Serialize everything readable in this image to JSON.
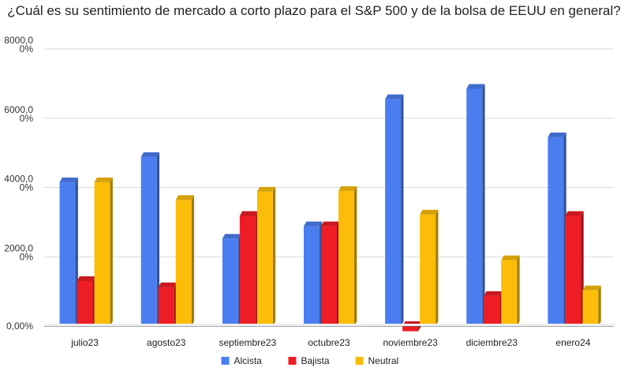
{
  "chart_data": {
    "type": "bar",
    "title": "¿Cuál es su sentimiento de mercado a corto plazo para el S&P 500 y de la bolsa de EEUU en general?",
    "categories": [
      "julio23",
      "agosto23",
      "septiembre23",
      "octubre23",
      "noviembre23",
      "diciembre23",
      "enero24"
    ],
    "series": [
      {
        "name": "Alcista",
        "color": "#4a7ef0",
        "values": [
          4150,
          4880,
          2520,
          2880,
          6550,
          6850,
          5450
        ]
      },
      {
        "name": "Bajista",
        "color": "#ee1c25",
        "values": [
          1300,
          1120,
          3180,
          2880,
          -150,
          870,
          3180
        ]
      },
      {
        "name": "Neutral",
        "color": "#fbbd08",
        "values": [
          4150,
          3640,
          3880,
          3900,
          3220,
          1900,
          1030
        ]
      }
    ],
    "ylim": [
      0,
      8000
    ],
    "yticks": [
      {
        "value": 0,
        "lines": [
          "0,00%"
        ]
      },
      {
        "value": 2000,
        "lines": [
          "2000,0",
          "0%"
        ]
      },
      {
        "value": 4000,
        "lines": [
          "4000,0",
          "0%"
        ]
      },
      {
        "value": 6000,
        "lines": [
          "6000,0",
          "0%"
        ]
      },
      {
        "value": 8000,
        "lines": [
          "8000,0",
          "0%"
        ]
      }
    ],
    "grid": true,
    "legend": "bottom"
  }
}
